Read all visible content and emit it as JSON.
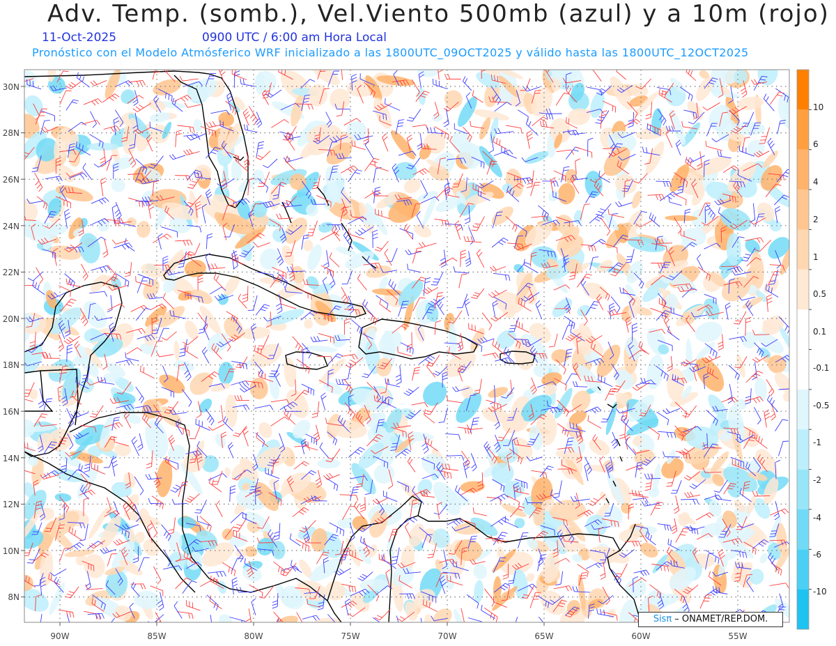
{
  "header": {
    "title": "Adv. Temp. (somb.), Vel.Viento 500mb (azul) y a 10m (rojo)",
    "date": "11-Oct-2025",
    "time": "0900 UTC / 6:00 am Hora Local",
    "model_info": "Pronóstico con el Modelo Atmósferico WRF inicializado a las 1800UTC_09OCT2025 y válido hasta las  1800UTC_12OCT2025"
  },
  "map": {
    "lat_labels": [
      "30N",
      "28N",
      "26N",
      "24N",
      "22N",
      "20N",
      "18N",
      "16N",
      "14N",
      "12N",
      "10N",
      "8N"
    ],
    "lon_labels": [
      "90W",
      "85W",
      "80W",
      "75W",
      "70W",
      "65W",
      "60W",
      "55W"
    ],
    "wind_500mb_color": "#3a3aff",
    "wind_10m_color": "#ff3a3a"
  },
  "colorbar": {
    "labels": [
      "10",
      "6",
      "4",
      "2",
      "1",
      "0.5",
      "0.1",
      "-0.1",
      "-0.5",
      "-1",
      "-2",
      "-4",
      "-6",
      "-10"
    ],
    "colors": [
      "#ff8000",
      "#ff9f40",
      "#ffb36b",
      "#ffc68f",
      "#ffd7b0",
      "#ffe8d4",
      "#ffffff",
      "#ffffff",
      "#dff6fd",
      "#bdeefb",
      "#99e5f8",
      "#72daf6",
      "#4bd0f4",
      "#1ec3f2"
    ]
  },
  "credit": {
    "brand": "Sisπ",
    "text": " – ONAMET/REP.DOM."
  }
}
